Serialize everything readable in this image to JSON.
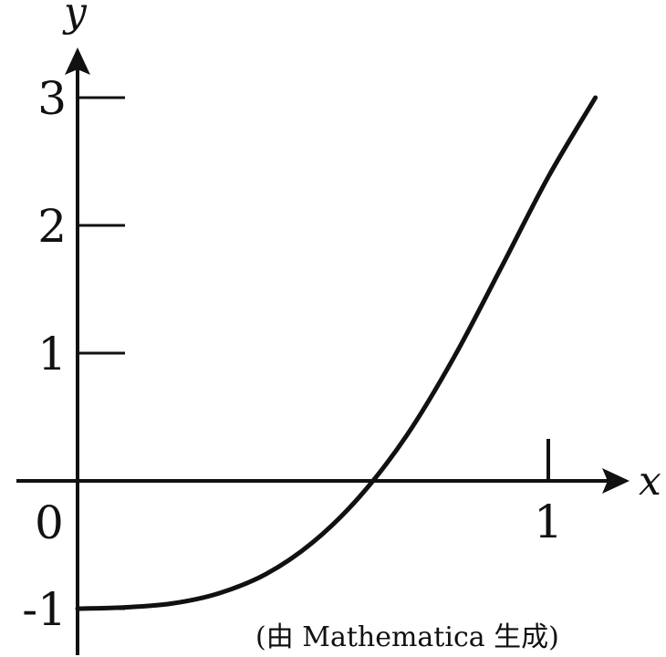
{
  "chart_data": {
    "type": "line",
    "xlabel": "x",
    "ylabel": "y",
    "xlim": [
      -0.13,
      1.2
    ],
    "ylim": [
      -1.35,
      3.8
    ],
    "x_ticks": [
      {
        "value": 1,
        "label": "1"
      }
    ],
    "y_ticks": [
      {
        "value": 3,
        "label": "3"
      },
      {
        "value": 2,
        "label": "2"
      },
      {
        "value": 1,
        "label": "1"
      },
      {
        "value": -1,
        "label": "-1"
      }
    ],
    "origin_label": "0",
    "series": [
      {
        "x": [
          0,
          0.1,
          0.2,
          0.3,
          0.4,
          0.5,
          0.6,
          0.7,
          0.8,
          0.9,
          1.0,
          1.1
        ],
        "y": [
          -1.0,
          -0.99,
          -0.96,
          -0.88,
          -0.73,
          -0.48,
          -0.12,
          0.36,
          0.97,
          1.67,
          2.38,
          3.0
        ]
      }
    ],
    "caption": "(由 Mathematica 生成)",
    "grid": false,
    "line_color": "#111111"
  }
}
